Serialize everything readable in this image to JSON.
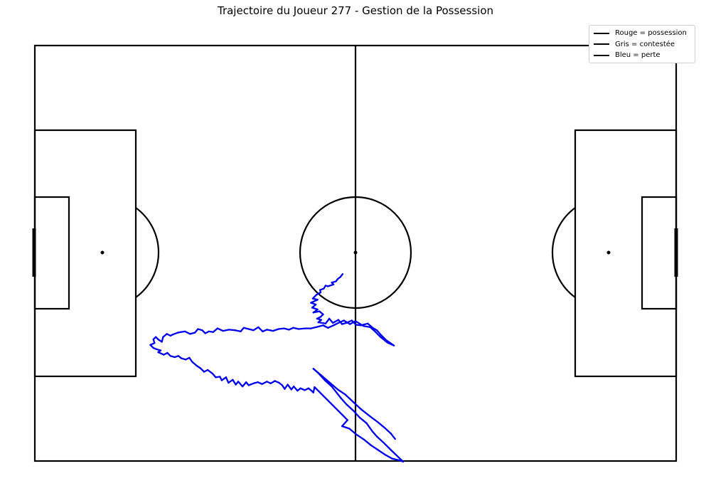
{
  "chart_data": {
    "type": "line",
    "title": "Trajectoire du Joueur 277 - Gestion de la Possession",
    "xlabel": "",
    "ylabel": "",
    "xlim": [
      0,
      105
    ],
    "ylim": [
      0,
      68
    ],
    "grid": false,
    "legend_position": "top-right",
    "legend": [
      {
        "label": "Rouge = possession",
        "color": "#000000"
      },
      {
        "label": "Gris = contestée",
        "color": "#000000"
      },
      {
        "label": "Bleu = perte",
        "color": "#000000"
      }
    ],
    "series": [
      {
        "color": "#0000ee",
        "points": [
          [
            50.4,
            30.6
          ],
          [
            50.0,
            30.1
          ],
          [
            49.6,
            29.8
          ],
          [
            49.3,
            29.4
          ],
          [
            48.6,
            29.2
          ],
          [
            48.9,
            28.9
          ],
          [
            48.0,
            28.6
          ],
          [
            47.6,
            28.7
          ],
          [
            47.3,
            28.2
          ],
          [
            46.7,
            28.0
          ],
          [
            46.8,
            27.6
          ],
          [
            46.1,
            27.2
          ],
          [
            45.5,
            26.6
          ],
          [
            46.3,
            26.4
          ],
          [
            45.2,
            25.9
          ],
          [
            46.0,
            25.6
          ],
          [
            45.4,
            25.1
          ],
          [
            46.3,
            24.8
          ],
          [
            45.6,
            24.3
          ],
          [
            46.6,
            24.5
          ],
          [
            47.2,
            24.0
          ],
          [
            46.8,
            23.6
          ],
          [
            46.2,
            23.3
          ],
          [
            46.9,
            23.1
          ],
          [
            46.4,
            22.7
          ],
          [
            47.6,
            22.5
          ],
          [
            48.2,
            23.3
          ],
          [
            48.8,
            22.6
          ],
          [
            49.7,
            23.1
          ],
          [
            50.3,
            22.4
          ],
          [
            51.0,
            22.6
          ],
          [
            51.9,
            23.0
          ],
          [
            52.6,
            22.3
          ],
          [
            53.4,
            22.2
          ],
          [
            54.5,
            22.5
          ],
          [
            55.3,
            21.8
          ],
          [
            56.0,
            21.4
          ],
          [
            56.7,
            20.6
          ],
          [
            57.5,
            19.8
          ],
          [
            58.2,
            19.3
          ],
          [
            58.8,
            18.9
          ],
          [
            57.7,
            19.4
          ],
          [
            56.6,
            20.3
          ],
          [
            55.7,
            21.2
          ],
          [
            54.9,
            21.9
          ],
          [
            53.8,
            22.1
          ],
          [
            52.5,
            22.9
          ],
          [
            51.6,
            22.4
          ],
          [
            50.6,
            23.0
          ],
          [
            49.7,
            22.6
          ],
          [
            48.9,
            22.2
          ],
          [
            48.0,
            21.8
          ],
          [
            47.2,
            22.2
          ],
          [
            46.4,
            22.0
          ],
          [
            45.2,
            21.7
          ],
          [
            44.2,
            21.7
          ],
          [
            43.2,
            21.6
          ],
          [
            42.3,
            21.8
          ],
          [
            41.6,
            21.5
          ],
          [
            40.8,
            21.7
          ],
          [
            39.9,
            21.6
          ],
          [
            39.0,
            21.3
          ],
          [
            38.0,
            21.5
          ],
          [
            37.3,
            21.2
          ],
          [
            36.6,
            21.9
          ],
          [
            35.8,
            21.4
          ],
          [
            35.0,
            21.6
          ],
          [
            34.2,
            21.8
          ],
          [
            33.7,
            21.2
          ],
          [
            32.8,
            21.4
          ],
          [
            31.8,
            21.5
          ],
          [
            30.8,
            21.3
          ],
          [
            29.9,
            21.7
          ],
          [
            29.2,
            21.1
          ],
          [
            28.5,
            21.2
          ],
          [
            27.9,
            20.9
          ],
          [
            27.4,
            21.4
          ],
          [
            26.7,
            21.6
          ],
          [
            26.2,
            21.0
          ],
          [
            25.4,
            20.8
          ],
          [
            24.6,
            21.2
          ],
          [
            23.9,
            21.1
          ],
          [
            23.4,
            21.0
          ],
          [
            22.6,
            20.7
          ],
          [
            22.2,
            20.5
          ],
          [
            21.6,
            20.8
          ],
          [
            21.0,
            20.3
          ],
          [
            20.8,
            19.5
          ],
          [
            20.2,
            19.9
          ],
          [
            19.8,
            20.3
          ],
          [
            19.4,
            19.9
          ],
          [
            19.6,
            19.3
          ],
          [
            18.9,
            19.0
          ],
          [
            19.4,
            18.5
          ],
          [
            19.9,
            18.3
          ],
          [
            20.6,
            18.1
          ],
          [
            20.2,
            17.8
          ],
          [
            21.1,
            17.4
          ],
          [
            21.7,
            17.7
          ],
          [
            22.2,
            17.2
          ],
          [
            22.9,
            17.0
          ],
          [
            23.5,
            17.2
          ],
          [
            24.0,
            16.8
          ],
          [
            24.7,
            16.6
          ],
          [
            25.3,
            16.9
          ],
          [
            25.8,
            16.2
          ],
          [
            26.5,
            15.6
          ],
          [
            27.1,
            15.2
          ],
          [
            27.7,
            14.6
          ],
          [
            28.3,
            14.9
          ],
          [
            29.1,
            14.3
          ],
          [
            29.6,
            13.7
          ],
          [
            30.3,
            13.8
          ],
          [
            30.6,
            13.2
          ],
          [
            31.3,
            13.7
          ],
          [
            31.7,
            12.8
          ],
          [
            32.4,
            13.3
          ],
          [
            32.9,
            12.5
          ],
          [
            33.3,
            13.0
          ],
          [
            34.0,
            12.2
          ],
          [
            34.6,
            12.9
          ],
          [
            35.0,
            12.4
          ],
          [
            35.8,
            12.7
          ],
          [
            36.5,
            12.9
          ],
          [
            37.2,
            12.6
          ],
          [
            38.0,
            13.0
          ],
          [
            38.6,
            12.7
          ],
          [
            39.3,
            13.1
          ],
          [
            40.0,
            12.8
          ],
          [
            40.5,
            12.4
          ],
          [
            40.9,
            11.8
          ],
          [
            41.4,
            12.5
          ],
          [
            42.0,
            11.7
          ],
          [
            42.4,
            12.2
          ],
          [
            43.0,
            11.5
          ],
          [
            43.5,
            11.9
          ],
          [
            44.2,
            11.6
          ],
          [
            44.8,
            11.9
          ],
          [
            45.3,
            11.5
          ],
          [
            45.6,
            11.2
          ],
          [
            45.8,
            12.1
          ],
          [
            50.5,
            7.4
          ],
          [
            51.2,
            6.7
          ],
          [
            50.3,
            5.7
          ],
          [
            51.5,
            5.3
          ],
          [
            52.7,
            4.3
          ],
          [
            53.9,
            3.5
          ],
          [
            55.0,
            2.6
          ],
          [
            56.2,
            1.8
          ],
          [
            57.4,
            1.0
          ],
          [
            58.5,
            0.4
          ],
          [
            59.7,
            0.1
          ],
          [
            60.3,
            -0.1
          ],
          [
            58.3,
            1.8
          ],
          [
            57.1,
            3.0
          ],
          [
            56.0,
            4.0
          ],
          [
            55.3,
            4.8
          ],
          [
            54.3,
            6.2
          ],
          [
            53.2,
            7.1
          ],
          [
            52.2,
            8.2
          ],
          [
            51.0,
            9.3
          ],
          [
            50.1,
            10.3
          ],
          [
            49.4,
            11.2
          ],
          [
            48.6,
            12.2
          ],
          [
            47.5,
            13.2
          ],
          [
            46.4,
            14.4
          ],
          [
            45.6,
            15.1
          ],
          [
            46.8,
            14.1
          ],
          [
            48.2,
            12.9
          ],
          [
            49.6,
            11.7
          ],
          [
            50.8,
            10.9
          ],
          [
            52.2,
            9.6
          ],
          [
            53.5,
            8.4
          ],
          [
            54.9,
            7.3
          ],
          [
            56.1,
            6.4
          ],
          [
            57.2,
            5.5
          ],
          [
            58.3,
            4.5
          ],
          [
            59.0,
            3.6
          ]
        ]
      }
    ]
  }
}
